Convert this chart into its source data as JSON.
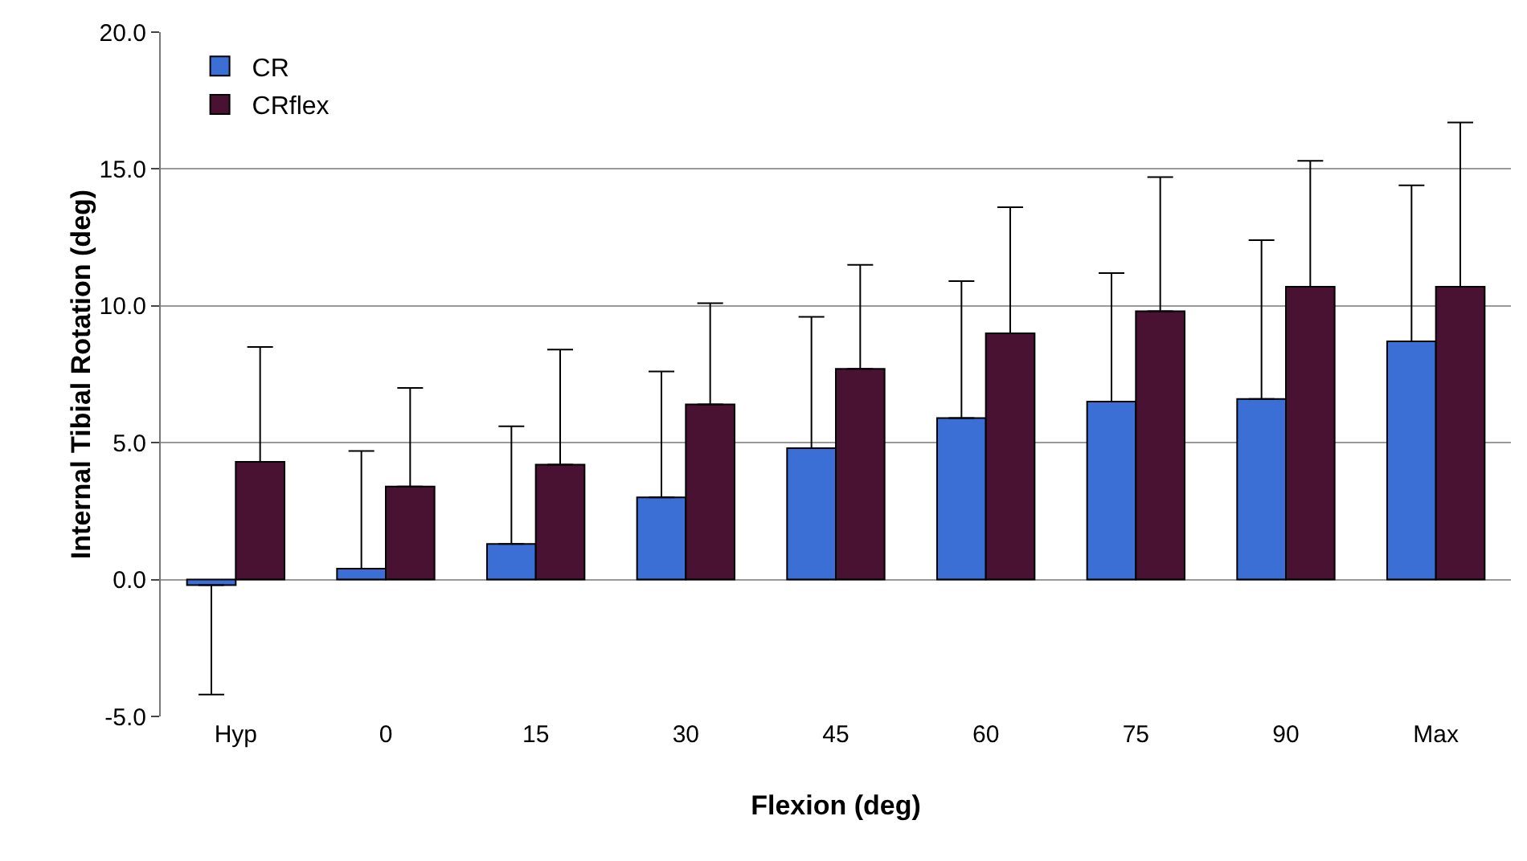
{
  "chart_data": {
    "type": "bar",
    "xlabel": "Flexion (deg)",
    "ylabel": "Internal Tibial Rotation (deg)",
    "categories": [
      "Hyp",
      "0",
      "15",
      "30",
      "45",
      "60",
      "75",
      "90",
      "Max"
    ],
    "series": [
      {
        "name": "CR",
        "color": "#3c6fd6",
        "values": [
          -0.2,
          0.4,
          1.3,
          3.0,
          4.8,
          5.9,
          6.5,
          6.6,
          8.7
        ],
        "errors": [
          [
            -4.2,
            -0.2
          ],
          [
            0.4,
            4.7
          ],
          [
            1.3,
            5.6
          ],
          [
            3.0,
            7.6
          ],
          [
            4.8,
            9.6
          ],
          [
            5.9,
            10.9
          ],
          [
            6.5,
            11.2
          ],
          [
            6.6,
            12.4
          ],
          [
            8.7,
            14.4
          ]
        ]
      },
      {
        "name": "CRflex",
        "color": "#4a1232",
        "values": [
          4.3,
          3.4,
          4.2,
          6.4,
          7.7,
          9.0,
          9.8,
          10.7,
          10.7
        ],
        "errors": [
          [
            4.3,
            8.5
          ],
          [
            3.4,
            7.0
          ],
          [
            4.2,
            8.4
          ],
          [
            6.4,
            10.1
          ],
          [
            7.7,
            11.5
          ],
          [
            9.0,
            13.6
          ],
          [
            9.8,
            14.7
          ],
          [
            10.7,
            15.3
          ],
          [
            10.7,
            16.7
          ]
        ]
      }
    ],
    "ylim": [
      -5,
      20
    ],
    "yticks": [
      {
        "value": -5,
        "label": "-5.0"
      },
      {
        "value": 0,
        "label": "0.0"
      },
      {
        "value": 5,
        "label": "5.0"
      },
      {
        "value": 10,
        "label": "10.0"
      },
      {
        "value": 15,
        "label": "15.0"
      },
      {
        "value": 20,
        "label": "20.0"
      }
    ],
    "grid": "y",
    "legend": "top left"
  }
}
